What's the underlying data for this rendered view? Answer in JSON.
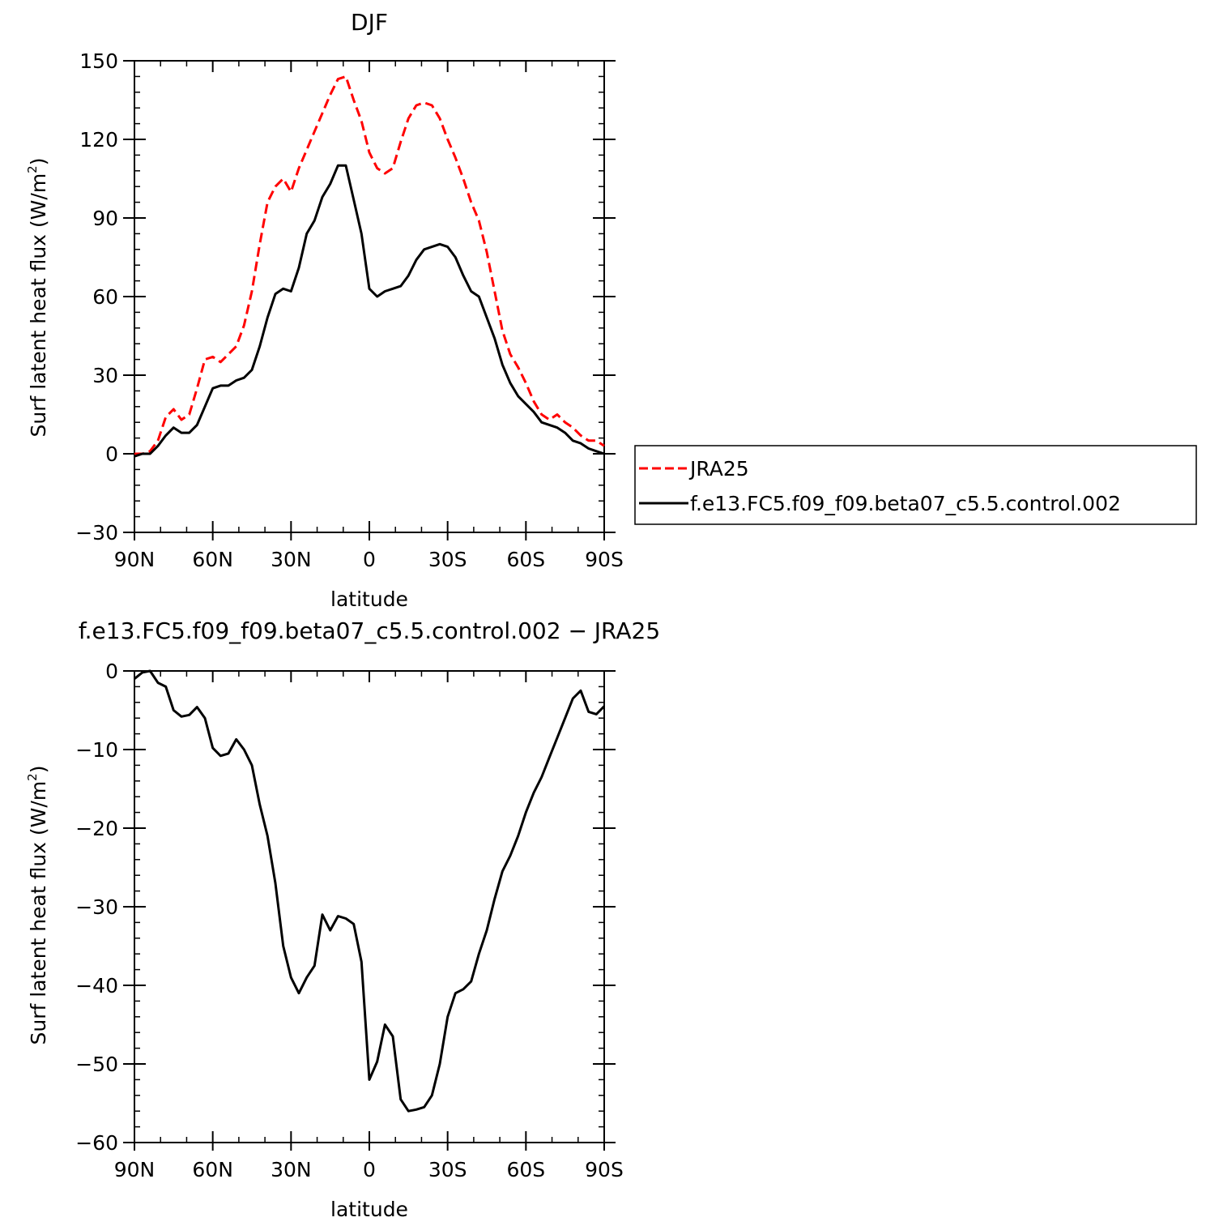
{
  "chart_data": [
    {
      "type": "line",
      "title": "DJF",
      "xlabel": "latitude",
      "ylabel": "Surf latent heat flux (W/m",
      "ylabel_sup": "2",
      "ylabel_close": ")",
      "xlim": [
        90,
        -90
      ],
      "ylim": [
        -30,
        150
      ],
      "x_ticks": [
        90,
        60,
        30,
        0,
        -30,
        -60,
        -90
      ],
      "x_tick_labels": [
        "90N",
        "60N",
        "30N",
        "0",
        "30S",
        "60S",
        "90S"
      ],
      "y_ticks": [
        -30,
        0,
        30,
        60,
        90,
        120,
        150
      ],
      "y_tick_labels": [
        "−30",
        "0",
        "30",
        "60",
        "90",
        "120",
        "150"
      ],
      "grid": false,
      "legend_position": "right",
      "series": [
        {
          "name": "JRA25",
          "color": "#ff0000",
          "dashed": true,
          "x": [
            90,
            87,
            84,
            81,
            78,
            75,
            72,
            69,
            66,
            63,
            60,
            57,
            54,
            51,
            48,
            45,
            42,
            39,
            36,
            33,
            30,
            27,
            24,
            21,
            18,
            15,
            12,
            9,
            6,
            3,
            0,
            -3,
            -6,
            -9,
            -12,
            -15,
            -18,
            -21,
            -24,
            -27,
            -30,
            -33,
            -36,
            -39,
            -42,
            -45,
            -48,
            -51,
            -54,
            -57,
            -60,
            -63,
            -66,
            -69,
            -72,
            -75,
            -78,
            -81,
            -84,
            -87,
            -90
          ],
          "values": [
            0,
            0,
            1,
            5,
            14,
            17,
            13,
            15,
            25,
            36,
            37,
            35,
            38,
            41,
            49,
            62,
            80,
            96,
            102,
            105,
            100,
            109,
            116,
            123,
            130,
            137,
            143,
            144,
            135,
            127,
            115,
            109,
            107,
            109,
            119,
            128,
            133,
            134,
            133,
            128,
            120,
            113,
            105,
            96,
            89,
            77,
            62,
            47,
            38,
            33,
            27,
            20,
            15,
            13,
            15,
            12,
            10,
            7,
            5,
            5,
            3
          ]
        },
        {
          "name": "f.e13.FC5.f09_f09.beta07_c5.5.control.002",
          "color": "#000000",
          "dashed": false,
          "x": [
            90,
            87,
            84,
            81,
            78,
            75,
            72,
            69,
            66,
            63,
            60,
            57,
            54,
            51,
            48,
            45,
            42,
            39,
            36,
            33,
            30,
            27,
            24,
            21,
            18,
            15,
            12,
            9,
            6,
            3,
            0,
            -3,
            -6,
            -9,
            -12,
            -15,
            -18,
            -21,
            -24,
            -27,
            -30,
            -33,
            -36,
            -39,
            -42,
            -45,
            -48,
            -51,
            -54,
            -57,
            -60,
            -63,
            -66,
            -69,
            -72,
            -75,
            -78,
            -81,
            -84,
            -87,
            -90
          ],
          "values": [
            -1,
            0,
            0,
            3,
            7,
            10,
            8,
            8,
            11,
            18,
            25,
            26,
            26,
            28,
            29,
            32,
            41,
            52,
            61,
            63,
            62,
            71,
            84,
            89,
            98,
            103,
            110,
            110,
            97,
            84,
            63,
            60,
            62,
            63,
            64,
            68,
            74,
            78,
            79,
            80,
            79,
            75,
            68,
            62,
            60,
            52,
            44,
            34,
            27,
            22,
            19,
            16,
            12,
            11,
            10,
            8,
            5,
            4,
            2,
            1,
            0
          ]
        }
      ]
    },
    {
      "type": "line",
      "title": "f.e13.FC5.f09_f09.beta07_c5.5.control.002 − JRA25",
      "xlabel": "latitude",
      "ylabel": "Surf latent heat flux (W/m",
      "ylabel_sup": "2",
      "ylabel_close": ")",
      "xlim": [
        90,
        -90
      ],
      "ylim": [
        -60,
        0
      ],
      "x_ticks": [
        90,
        60,
        30,
        0,
        -30,
        -60,
        -90
      ],
      "x_tick_labels": [
        "90N",
        "60N",
        "30N",
        "0",
        "30S",
        "60S",
        "90S"
      ],
      "y_ticks": [
        -60,
        -50,
        -40,
        -30,
        -20,
        -10,
        0
      ],
      "y_tick_labels": [
        "−60",
        "−50",
        "−40",
        "−30",
        "−20",
        "−10",
        "0"
      ],
      "grid": false,
      "series": [
        {
          "color": "#000000",
          "dashed": false,
          "x": [
            90,
            87,
            84,
            81,
            78,
            75,
            72,
            69,
            66,
            63,
            60,
            57,
            54,
            51,
            48,
            45,
            42,
            39,
            36,
            33,
            30,
            27,
            24,
            21,
            18,
            15,
            12,
            9,
            6,
            3,
            0,
            -3,
            -6,
            -9,
            -12,
            -15,
            -18,
            -21,
            -24,
            -27,
            -30,
            -33,
            -36,
            -39,
            -42,
            -45,
            -48,
            -51,
            -54,
            -57,
            -60,
            -63,
            -66,
            -69,
            -72,
            -75,
            -78,
            -81,
            -84,
            -87,
            -90
          ],
          "values": [
            -1,
            -0.2,
            0,
            -1.5,
            -2,
            -5,
            -5.8,
            -5.6,
            -4.6,
            -6,
            -9.8,
            -10.8,
            -10.5,
            -8.7,
            -10,
            -12,
            -17,
            -21,
            -27,
            -35,
            -39,
            -41,
            -39,
            -37.5,
            -31,
            -33,
            -31.2,
            -31.5,
            -32.2,
            -37,
            -52,
            -49.7,
            -45,
            -46.5,
            -54.5,
            -56,
            -55.8,
            -55.5,
            -54,
            -50,
            -44,
            -41,
            -40.5,
            -39.5,
            -36,
            -33,
            -29,
            -25.5,
            -23.5,
            -21,
            -18,
            -15.5,
            -13.5,
            -11,
            -8.5,
            -6,
            -3.5,
            -2.5,
            -5.2,
            -5.5,
            -4.5
          ]
        }
      ]
    }
  ]
}
